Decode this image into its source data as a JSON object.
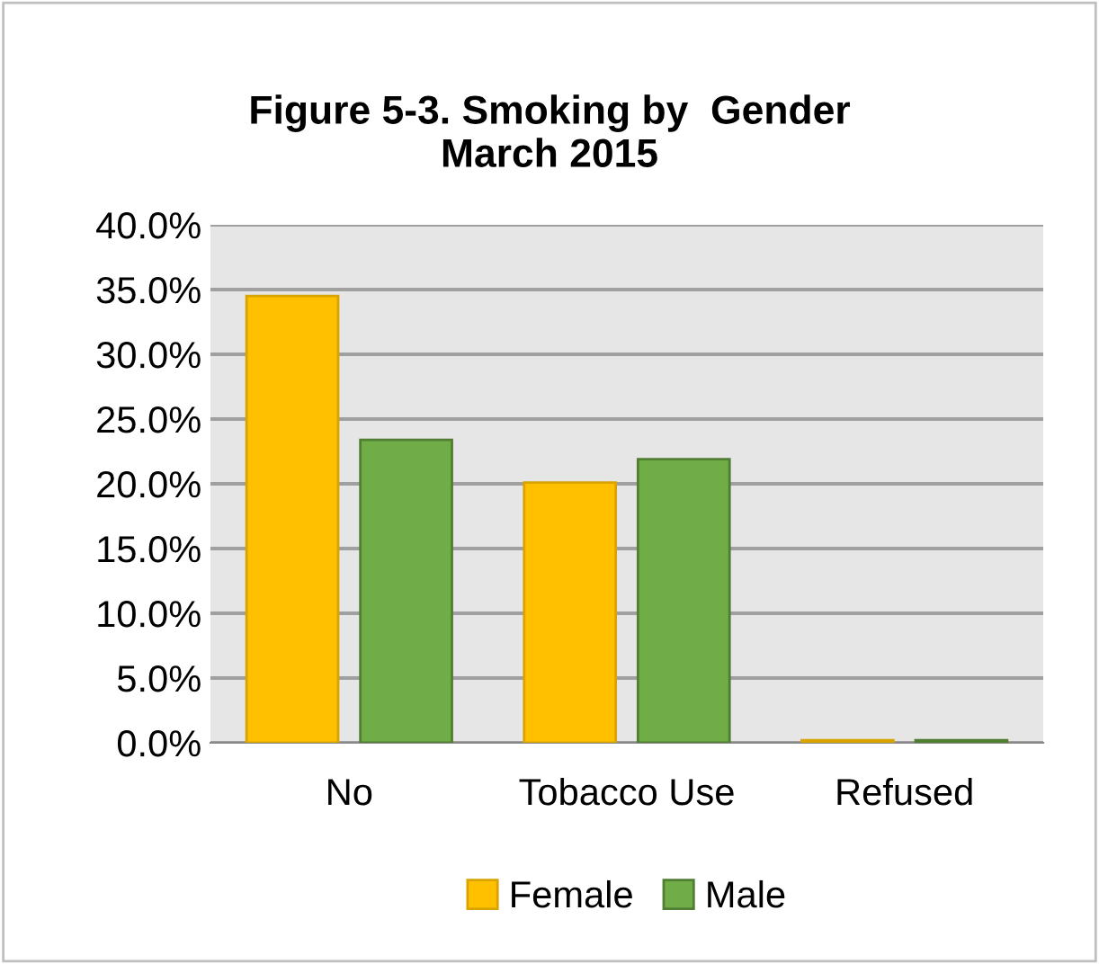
{
  "chart_data": {
    "type": "bar",
    "title": "Figure 5-3. Smoking by  Gender\nMarch 2015",
    "categories": [
      "No",
      "Tobacco Use",
      "Refused"
    ],
    "series": [
      {
        "name": "Female",
        "color": "#ffc000",
        "values": [
          34.5,
          20.1,
          0.2
        ]
      },
      {
        "name": "Male",
        "color": "#70ad47",
        "values": [
          23.4,
          21.9,
          0.2
        ]
      }
    ],
    "ylim": [
      0,
      40
    ],
    "yticks": [
      {
        "value": 0,
        "label": "0.0%"
      },
      {
        "value": 5,
        "label": "5.0%"
      },
      {
        "value": 10,
        "label": "10.0%"
      },
      {
        "value": 15,
        "label": "15.0%"
      },
      {
        "value": 20,
        "label": "20.0%"
      },
      {
        "value": 25,
        "label": "25.0%"
      },
      {
        "value": 30,
        "label": "30.0%"
      },
      {
        "value": 35,
        "label": "35.0%"
      },
      {
        "value": 40,
        "label": "40.0%"
      }
    ],
    "grid": "y",
    "legend": "bottom"
  }
}
